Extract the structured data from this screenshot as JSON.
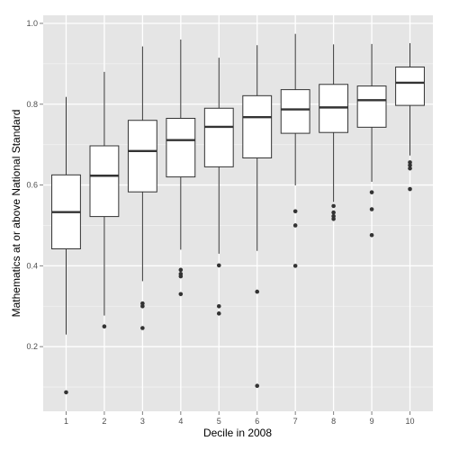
{
  "chart_data": {
    "type": "box",
    "xlabel": "Decile in 2008",
    "ylabel": "Mathematics at or above National Standard",
    "categories": [
      "1",
      "2",
      "3",
      "4",
      "5",
      "6",
      "7",
      "8",
      "9",
      "10"
    ],
    "ylim": [
      0.04,
      1.02
    ],
    "yticks": [
      0.2,
      0.4,
      0.6,
      0.8,
      1.0
    ],
    "ytick_labels": [
      "0.2",
      "0.4",
      "0.6",
      "0.8",
      "1.0"
    ],
    "grid": true,
    "boxes": [
      {
        "category": "1",
        "whisker_low": 0.23,
        "q1": 0.442,
        "median": 0.533,
        "q3": 0.625,
        "whisker_high": 0.818,
        "outliers": [
          0.087
        ]
      },
      {
        "category": "2",
        "whisker_low": 0.277,
        "q1": 0.522,
        "median": 0.623,
        "q3": 0.697,
        "whisker_high": 0.88,
        "outliers": [
          0.25
        ]
      },
      {
        "category": "3",
        "whisker_low": 0.362,
        "q1": 0.583,
        "median": 0.684,
        "q3": 0.76,
        "whisker_high": 0.943,
        "outliers": [
          0.307,
          0.3,
          0.246
        ]
      },
      {
        "category": "4",
        "whisker_low": 0.44,
        "q1": 0.62,
        "median": 0.711,
        "q3": 0.765,
        "whisker_high": 0.96,
        "outliers": [
          0.39,
          0.38,
          0.374,
          0.33
        ]
      },
      {
        "category": "5",
        "whisker_low": 0.43,
        "q1": 0.645,
        "median": 0.744,
        "q3": 0.79,
        "whisker_high": 0.915,
        "outliers": [
          0.401,
          0.3,
          0.282
        ]
      },
      {
        "category": "6",
        "whisker_low": 0.437,
        "q1": 0.667,
        "median": 0.768,
        "q3": 0.821,
        "whisker_high": 0.946,
        "outliers": [
          0.336,
          0.103
        ]
      },
      {
        "category": "7",
        "whisker_low": 0.599,
        "q1": 0.728,
        "median": 0.787,
        "q3": 0.836,
        "whisker_high": 0.974,
        "outliers": [
          0.535,
          0.5,
          0.4
        ]
      },
      {
        "category": "8",
        "whisker_low": 0.558,
        "q1": 0.73,
        "median": 0.792,
        "q3": 0.849,
        "whisker_high": 0.948,
        "outliers": [
          0.548,
          0.532,
          0.523,
          0.516
        ]
      },
      {
        "category": "9",
        "whisker_low": 0.608,
        "q1": 0.743,
        "median": 0.81,
        "q3": 0.845,
        "whisker_high": 0.949,
        "outliers": [
          0.582,
          0.54,
          0.476
        ]
      },
      {
        "category": "10",
        "whisker_low": 0.673,
        "q1": 0.797,
        "median": 0.853,
        "q3": 0.892,
        "whisker_high": 0.951,
        "outliers": [
          0.656,
          0.649,
          0.641,
          0.59
        ]
      }
    ],
    "colors": {
      "panel_background": "#e5e5e5",
      "grid_major": "#ffffff",
      "grid_minor": "#f2f2f2",
      "box_fill": "#ffffff",
      "box_stroke": "#333333",
      "outlier": "#333333"
    }
  }
}
